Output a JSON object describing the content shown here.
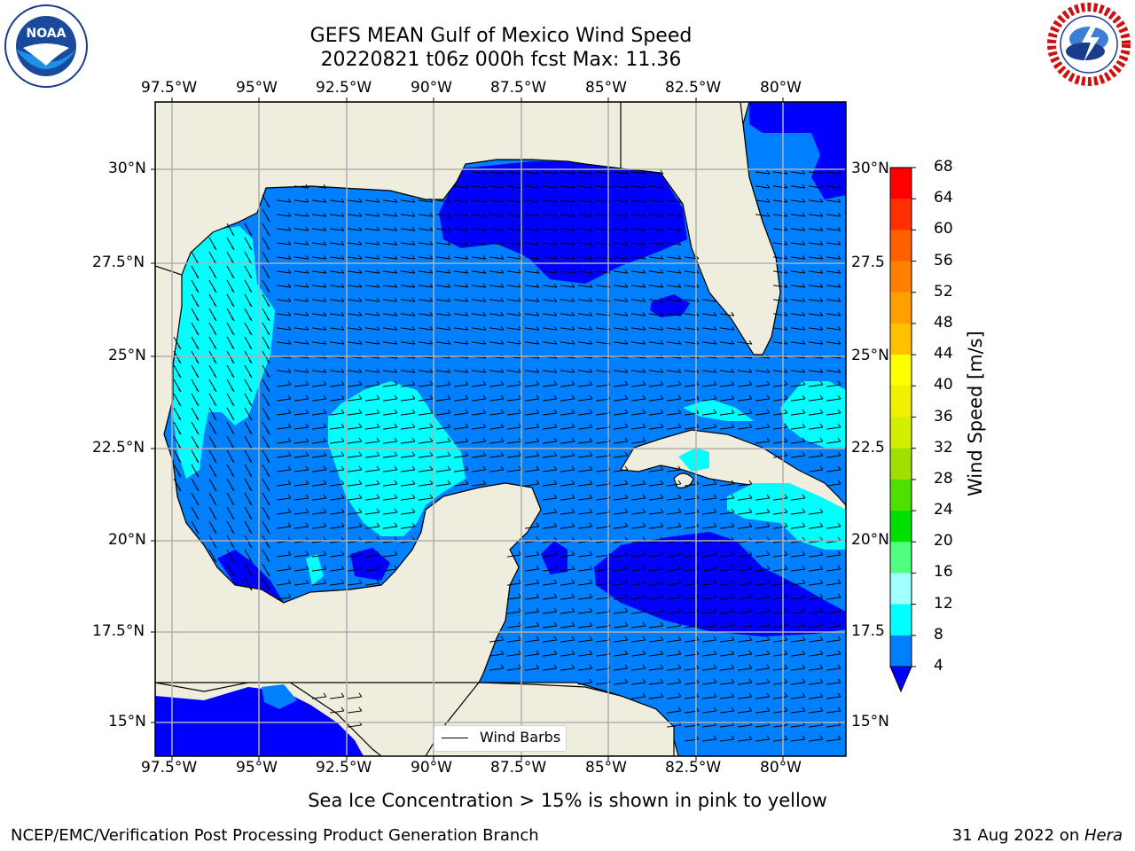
{
  "title": {
    "line1": "GEFS MEAN Gulf of Mexico Wind Speed",
    "line2": "20220821 t06z 000h fcst   Max: 11.36"
  },
  "logos": {
    "left": {
      "name": "NOAA",
      "ring_text": "NATIONAL OCEANIC AND ATMOSPHERIC ADMINISTRATION · U.S. DEPARTMENT OF COMMERCE"
    },
    "right": {
      "name": "NATIONAL WEATHER SERVICE"
    }
  },
  "axes": {
    "lon_labels": [
      "97.5°W",
      "95°W",
      "92.5°W",
      "90°W",
      "87.5°W",
      "85°W",
      "82.5°W",
      "80°W"
    ],
    "lat_labels_left": [
      "30°N",
      "27.5°N",
      "25°N",
      "22.5°N",
      "20°N",
      "17.5°N",
      "15°N"
    ],
    "lat_labels_right": [
      "30°N",
      "27.5",
      "25°N",
      "22.5",
      "20°N",
      "17.5",
      "15°N"
    ]
  },
  "legend": {
    "label": "Wind Barbs"
  },
  "colorbar": {
    "label": "Wind Speed [m/s]",
    "ticks": [
      "68",
      "64",
      "60",
      "56",
      "52",
      "48",
      "44",
      "40",
      "36",
      "32",
      "28",
      "24",
      "20",
      "16",
      "12",
      "8",
      "4"
    ],
    "colors": [
      "#0000ff",
      "#0080ff",
      "#00ffff",
      "#40ffff",
      "#80ffff",
      "#a0ffff",
      "#50ff80",
      "#30e030",
      "#00e000",
      "#50e000",
      "#a0e000",
      "#d0f000",
      "#e0f000",
      "#ffff00",
      "#ffe000",
      "#ffc000",
      "#ffa000",
      "#ff8000",
      "#ff6000",
      "#ff4000",
      "#ff0000"
    ]
  },
  "caption": "Sea Ice Concentration > 15% is shown in pink to yellow",
  "footer": {
    "left": "NCEP/EMC/Verification Post Processing Product Generation Branch",
    "right_prefix": "31 Aug 2022 on ",
    "right_host": "Hera"
  },
  "colors": {
    "land": "#efedde",
    "speed_4_8": "#0080ff",
    "speed_lt_4": "#0000ff",
    "speed_8_12": "#00ffff",
    "grid": "#b0b0b0"
  }
}
